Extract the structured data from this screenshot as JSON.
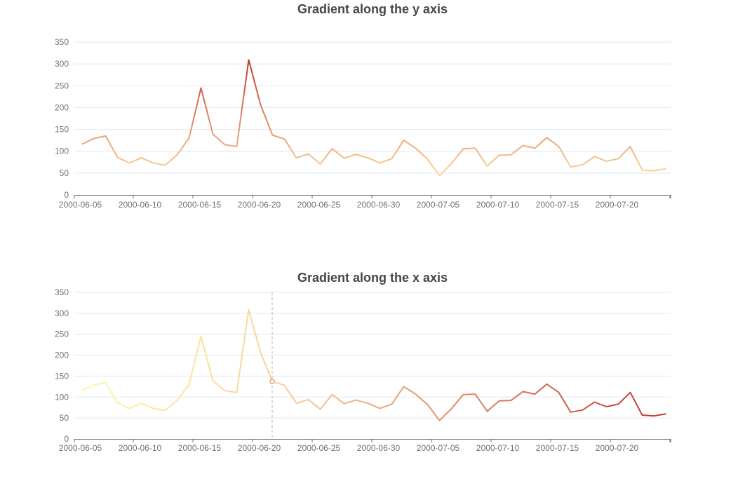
{
  "chart_data": [
    {
      "type": "line",
      "title": "Gradient along the y axis",
      "gradient": "y",
      "colors": {
        "low": "#fcd89a",
        "high": "#c23531"
      },
      "ylim": [
        0,
        350
      ],
      "y_ticks": [
        0,
        50,
        100,
        150,
        200,
        250,
        300,
        350
      ],
      "x_tick_labels": [
        "2000-06-05",
        "2000-06-10",
        "2000-06-15",
        "2000-06-20",
        "2000-06-25",
        "2000-06-30",
        "2000-07-05",
        "2000-07-10",
        "2000-07-15",
        "2000-07-20"
      ],
      "x": [
        "2000-06-05",
        "2000-06-06",
        "2000-06-07",
        "2000-06-08",
        "2000-06-09",
        "2000-06-10",
        "2000-06-11",
        "2000-06-12",
        "2000-06-13",
        "2000-06-14",
        "2000-06-15",
        "2000-06-16",
        "2000-06-17",
        "2000-06-18",
        "2000-06-19",
        "2000-06-20",
        "2000-06-21",
        "2000-06-22",
        "2000-06-23",
        "2000-06-24",
        "2000-06-25",
        "2000-06-26",
        "2000-06-27",
        "2000-06-28",
        "2000-06-29",
        "2000-06-30",
        "2000-07-01",
        "2000-07-02",
        "2000-07-03",
        "2000-07-04",
        "2000-07-05",
        "2000-07-06",
        "2000-07-07",
        "2000-07-08",
        "2000-07-09",
        "2000-07-10",
        "2000-07-11",
        "2000-07-12",
        "2000-07-13",
        "2000-07-14",
        "2000-07-15",
        "2000-07-16",
        "2000-07-17",
        "2000-07-18",
        "2000-07-19",
        "2000-07-20",
        "2000-07-21",
        "2000-07-22",
        "2000-07-23",
        "2000-07-24"
      ],
      "values": [
        116,
        129,
        135,
        86,
        73,
        85,
        73,
        68,
        92,
        130,
        245,
        139,
        115,
        111,
        309,
        206,
        137,
        128,
        85,
        94,
        71,
        106,
        84,
        93,
        85,
        73,
        83,
        125,
        107,
        82,
        44,
        72,
        106,
        107,
        66,
        91,
        92,
        113,
        107,
        131,
        111,
        64,
        69,
        88,
        77,
        83,
        111,
        57,
        55,
        60
      ],
      "grid": true
    },
    {
      "type": "line",
      "title": "Gradient along the x axis",
      "gradient": "x",
      "colors": {
        "start": "#fff7a8",
        "end": "#c23531"
      },
      "ylim": [
        0,
        350
      ],
      "y_ticks": [
        0,
        50,
        100,
        150,
        200,
        250,
        300,
        350
      ],
      "x_tick_labels": [
        "2000-06-05",
        "2000-06-10",
        "2000-06-15",
        "2000-06-20",
        "2000-06-25",
        "2000-06-30",
        "2000-07-05",
        "2000-07-10",
        "2000-07-15",
        "2000-07-20"
      ],
      "x": [
        "2000-06-05",
        "2000-06-06",
        "2000-06-07",
        "2000-06-08",
        "2000-06-09",
        "2000-06-10",
        "2000-06-11",
        "2000-06-12",
        "2000-06-13",
        "2000-06-14",
        "2000-06-15",
        "2000-06-16",
        "2000-06-17",
        "2000-06-18",
        "2000-06-19",
        "2000-06-20",
        "2000-06-21",
        "2000-06-22",
        "2000-06-23",
        "2000-06-24",
        "2000-06-25",
        "2000-06-26",
        "2000-06-27",
        "2000-06-28",
        "2000-06-29",
        "2000-06-30",
        "2000-07-01",
        "2000-07-02",
        "2000-07-03",
        "2000-07-04",
        "2000-07-05",
        "2000-07-06",
        "2000-07-07",
        "2000-07-08",
        "2000-07-09",
        "2000-07-10",
        "2000-07-11",
        "2000-07-12",
        "2000-07-13",
        "2000-07-14",
        "2000-07-15",
        "2000-07-16",
        "2000-07-17",
        "2000-07-18",
        "2000-07-19",
        "2000-07-20",
        "2000-07-21",
        "2000-07-22",
        "2000-07-23",
        "2000-07-24"
      ],
      "values": [
        116,
        129,
        135,
        86,
        73,
        85,
        73,
        68,
        92,
        130,
        245,
        139,
        115,
        111,
        309,
        206,
        137,
        128,
        85,
        94,
        71,
        106,
        84,
        93,
        85,
        73,
        83,
        125,
        107,
        82,
        44,
        72,
        106,
        107,
        66,
        91,
        92,
        113,
        107,
        131,
        111,
        64,
        69,
        88,
        77,
        83,
        111,
        57,
        55,
        60
      ],
      "grid": true,
      "hover": {
        "x": "2000-06-21",
        "value": 137
      }
    }
  ]
}
